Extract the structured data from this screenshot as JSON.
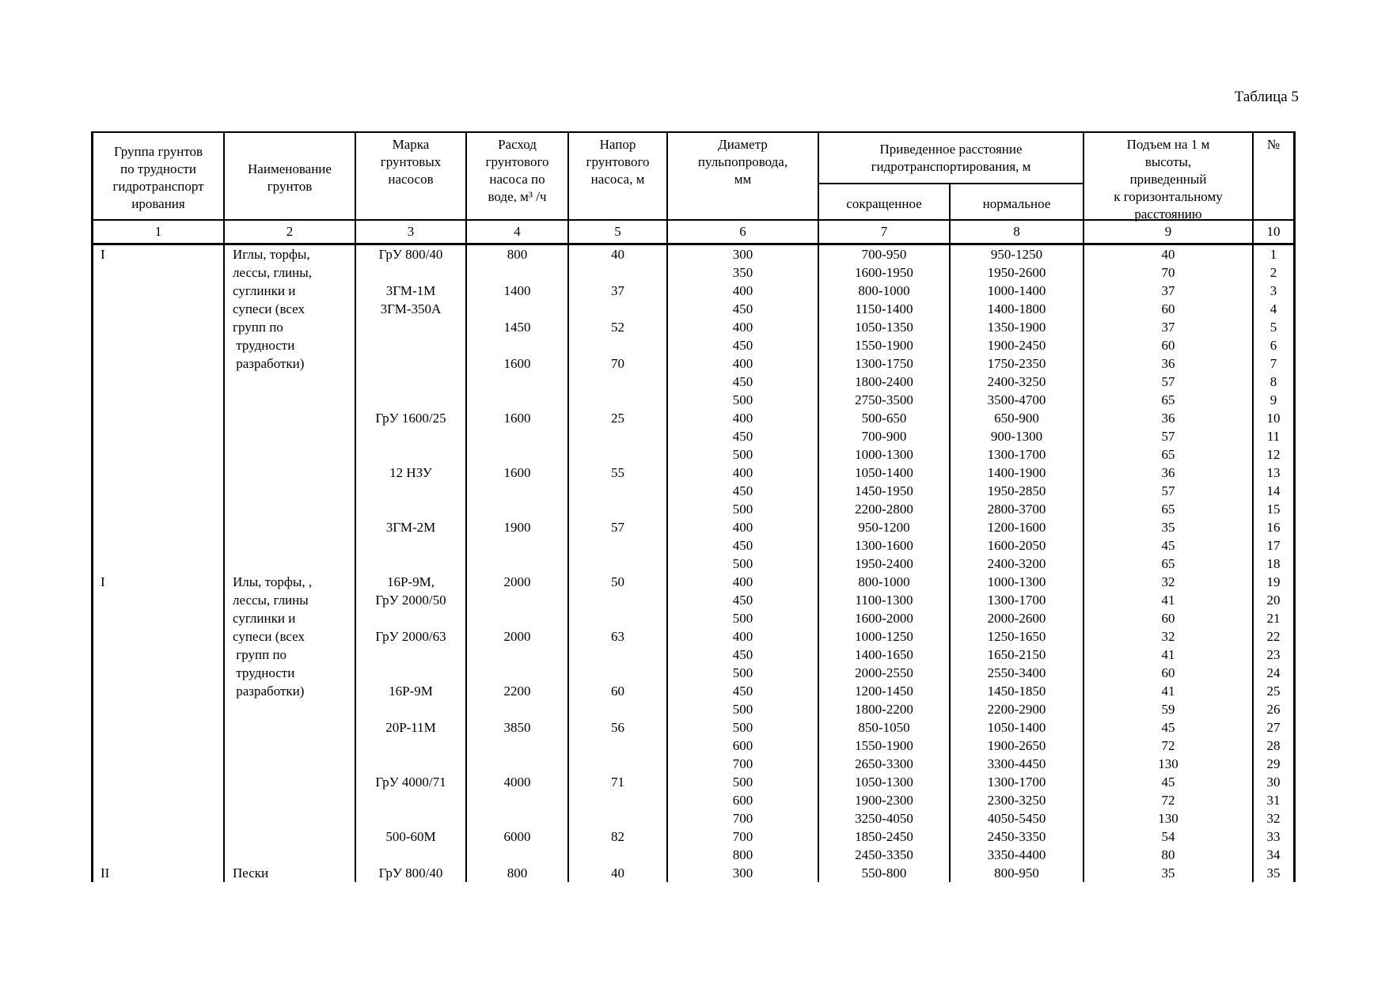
{
  "page": {
    "caption": "Таблица 5"
  },
  "table": {
    "header": {
      "soil_group": [
        "Группа грунтов",
        "по трудности",
        "гидротранспорт",
        "ирования"
      ],
      "soil_name": [
        "Наименование",
        "грунтов"
      ],
      "pump_brand": [
        "Марка",
        "грунтовых",
        "насосов"
      ],
      "pump_flow": [
        "Расход",
        "грунтового",
        "насоса по",
        "воде, м³ /ч"
      ],
      "pump_head": [
        "Напор",
        "грунтового",
        "насоса, м"
      ],
      "pipe_diameter": [
        "Диаметр",
        "пульпопровода,",
        "мм"
      ],
      "distance_group": [
        "Приведенное расстояние",
        "гидротранспортирования, м"
      ],
      "distance_short": "сокращенное",
      "distance_normal": "нормальное",
      "rise": [
        "Подъем на 1 м",
        "высоты,",
        "приведенный",
        "к горизонтальному",
        "расстоянию"
      ],
      "number": "№"
    },
    "numbering": [
      "1",
      "2",
      "3",
      "4",
      "5",
      "6",
      "7",
      "8",
      "9",
      "10"
    ],
    "rows": [
      [
        "I",
        "Иглы, торфы,",
        "ГрУ 800/40",
        "800",
        "40",
        "300",
        "700-950",
        "950-1250",
        "40",
        "1"
      ],
      [
        "",
        "лессы, глины,",
        "",
        "",
        "",
        "350",
        "1600-1950",
        "1950-2600",
        "70",
        "2"
      ],
      [
        "",
        "суглинки и",
        "3ГМ-1М",
        "1400",
        "37",
        "400",
        "800-1000",
        "1000-1400",
        "37",
        "3"
      ],
      [
        "",
        "супеси (всех",
        "3ГМ-350А",
        "",
        "",
        "450",
        "1150-1400",
        "1400-1800",
        "60",
        "4"
      ],
      [
        "",
        "групп по",
        "",
        "1450",
        "52",
        "400",
        "1050-1350",
        "1350-1900",
        "37",
        "5"
      ],
      [
        "",
        " трудности",
        "",
        "",
        "",
        "450",
        "1550-1900",
        "1900-2450",
        "60",
        "6"
      ],
      [
        "",
        " разработки)",
        "",
        "1600",
        "70",
        "400",
        "1300-1750",
        "1750-2350",
        "36",
        "7"
      ],
      [
        "",
        "",
        "",
        "",
        "",
        "450",
        "1800-2400",
        "2400-3250",
        "57",
        "8"
      ],
      [
        "",
        "",
        "",
        "",
        "",
        "500",
        "2750-3500",
        "3500-4700",
        "65",
        "9"
      ],
      [
        "",
        "",
        "ГрУ 1600/25",
        "1600",
        "25",
        "400",
        "500-650",
        "650-900",
        "36",
        "10"
      ],
      [
        "",
        "",
        "",
        "",
        "",
        "450",
        "700-900",
        "900-1300",
        "57",
        "11"
      ],
      [
        "",
        "",
        "",
        "",
        "",
        "500",
        "1000-1300",
        "1300-1700",
        "65",
        "12"
      ],
      [
        "",
        "",
        "12 НЗУ",
        "1600",
        "55",
        "400",
        "1050-1400",
        "1400-1900",
        "36",
        "13"
      ],
      [
        "",
        "",
        "",
        "",
        "",
        "450",
        "1450-1950",
        "1950-2850",
        "57",
        "14"
      ],
      [
        "",
        "",
        "",
        "",
        "",
        "500",
        "2200-2800",
        "2800-3700",
        "65",
        "15"
      ],
      [
        "",
        "",
        "3ГМ-2М",
        "1900",
        "57",
        "400",
        "950-1200",
        "1200-1600",
        "35",
        "16"
      ],
      [
        "",
        "",
        "",
        "",
        "",
        "450",
        "1300-1600",
        "1600-2050",
        "45",
        "17"
      ],
      [
        "",
        "",
        "",
        "",
        "",
        "500",
        "1950-2400",
        "2400-3200",
        "65",
        "18"
      ],
      [
        "I",
        "Илы, торфы, ,",
        "16Р-9М,",
        "2000",
        "50",
        "400",
        "800-1000",
        "1000-1300",
        "32",
        "19"
      ],
      [
        "",
        "лессы, глины",
        "ГрУ 2000/50",
        "",
        "",
        "450",
        "1100-1300",
        "1300-1700",
        "41",
        "20"
      ],
      [
        "",
        "суглинки и",
        "",
        "",
        "",
        "500",
        "1600-2000",
        "2000-2600",
        "60",
        "21"
      ],
      [
        "",
        "супеси (всех",
        "ГрУ 2000/63",
        "2000",
        "63",
        "400",
        "1000-1250",
        "1250-1650",
        "32",
        "22"
      ],
      [
        "",
        " групп по",
        "",
        "",
        "",
        "450",
        "1400-1650",
        "1650-2150",
        "41",
        "23"
      ],
      [
        "",
        " трудности",
        "",
        "",
        "",
        "500",
        "2000-2550",
        "2550-3400",
        "60",
        "24"
      ],
      [
        "",
        " разработки)",
        "16Р-9М",
        "2200",
        "60",
        "450",
        "1200-1450",
        "1450-1850",
        "41",
        "25"
      ],
      [
        "",
        "",
        "",
        "",
        "",
        "500",
        "1800-2200",
        "2200-2900",
        "59",
        "26"
      ],
      [
        "",
        "",
        "20Р-11М",
        "3850",
        "56",
        "500",
        "850-1050",
        "1050-1400",
        "45",
        "27"
      ],
      [
        "",
        "",
        "",
        "",
        "",
        "600",
        "1550-1900",
        "1900-2650",
        "72",
        "28"
      ],
      [
        "",
        "",
        "",
        "",
        "",
        "700",
        "2650-3300",
        "3300-4450",
        "130",
        "29"
      ],
      [
        "",
        "",
        "ГрУ 4000/71",
        "4000",
        "71",
        "500",
        "1050-1300",
        "1300-1700",
        "45",
        "30"
      ],
      [
        "",
        "",
        "",
        "",
        "",
        "600",
        "1900-2300",
        "2300-3250",
        "72",
        "31"
      ],
      [
        "",
        "",
        "",
        "",
        "",
        "700",
        "3250-4050",
        "4050-5450",
        "130",
        "32"
      ],
      [
        "",
        "",
        "500-60М",
        "6000",
        "82",
        "700",
        "1850-2450",
        "2450-3350",
        "54",
        "33"
      ],
      [
        "",
        "",
        "",
        "",
        "",
        "800",
        "2450-3350",
        "3350-4400",
        "80",
        "34"
      ],
      [
        "II",
        "Пески",
        "ГрУ 800/40",
        "800",
        "40",
        "300",
        "550-800",
        "800-950",
        "35",
        "35"
      ]
    ]
  }
}
